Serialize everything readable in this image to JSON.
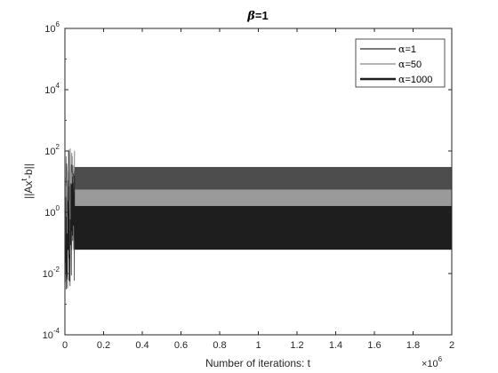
{
  "chart_data": {
    "type": "line",
    "title_symbol": "β",
    "title_rest": "=1",
    "xlabel": "Number of iterations: t",
    "ylabel_parts": [
      "||Ax",
      "t",
      "-b||"
    ],
    "xlim": [
      0,
      2000000
    ],
    "ylim": [
      0.0001,
      1000000
    ],
    "yscale": "log",
    "x_ticks": [
      0,
      200000,
      400000,
      600000,
      800000,
      1000000,
      1200000,
      1400000,
      1600000,
      1800000,
      2000000
    ],
    "x_tick_labels": [
      "0",
      "0.2",
      "0.4",
      "0.6",
      "0.8",
      "1",
      "1.2",
      "1.4",
      "1.6",
      "1.8",
      "2"
    ],
    "x_multiplier": {
      "base": "×10",
      "exp": "6"
    },
    "y_ticks": [
      {
        "value": 0.0001,
        "base": "10",
        "exp": "-4"
      },
      {
        "value": 0.01,
        "base": "10",
        "exp": "-2"
      },
      {
        "value": 1,
        "base": "10",
        "exp": "0"
      },
      {
        "value": 100,
        "base": "10",
        "exp": "2"
      },
      {
        "value": 10000,
        "base": "10",
        "exp": "4"
      },
      {
        "value": 1000000,
        "base": "10",
        "exp": "6"
      }
    ],
    "grid": false,
    "legend_position": "top-right",
    "series": [
      {
        "name_symbol": "α",
        "name_rest": "=1",
        "color": "#4d4d4d",
        "transient_end": 50000,
        "band_low": 2,
        "band_high": 30,
        "transient_low": 0.5,
        "transient_high": 130
      },
      {
        "name_symbol": "α",
        "name_rest": "=50",
        "color": "#9a9a9a",
        "transient_end": 50000,
        "band_low": 1.5,
        "band_high": 5.5,
        "transient_low": 0.05,
        "transient_high": 40
      },
      {
        "name_symbol": "α",
        "name_rest": "=1000",
        "color": "#1e1e1e",
        "transient_end": 50000,
        "band_low": 0.06,
        "band_high": 1.6,
        "transient_low": 0.003,
        "transient_high": 20
      }
    ]
  }
}
